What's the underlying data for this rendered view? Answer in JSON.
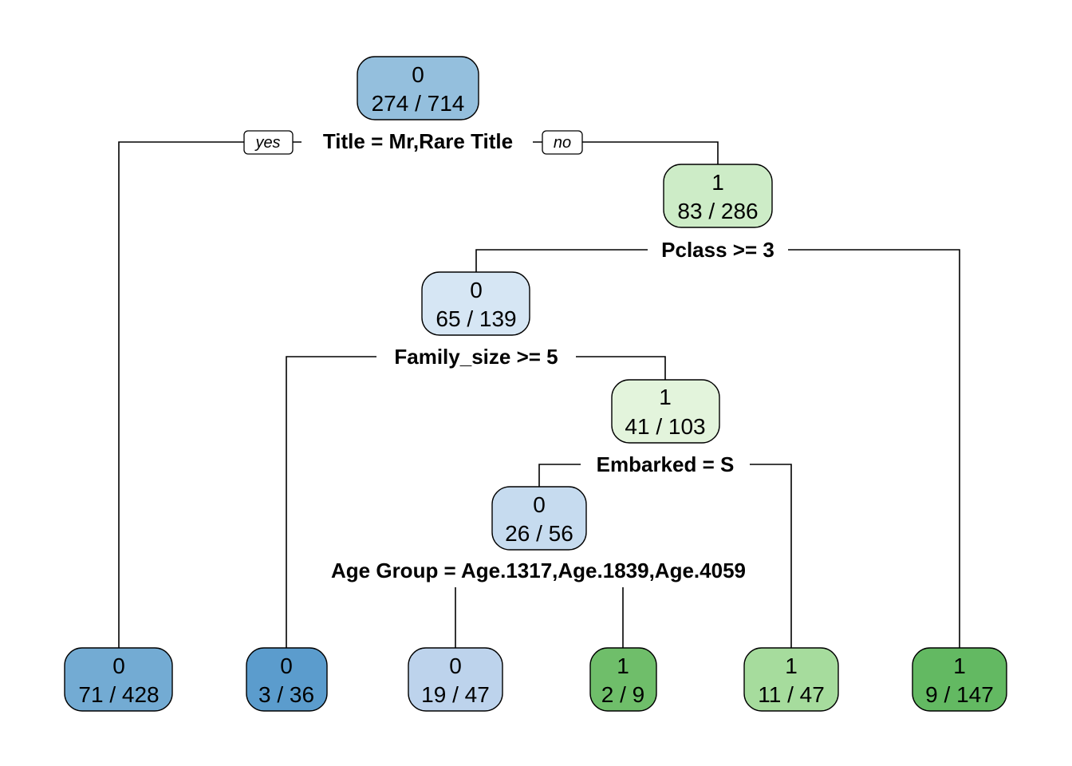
{
  "tree": {
    "branch_tags": {
      "yes": "yes",
      "no": "no"
    },
    "nodes": {
      "root": {
        "class": "0",
        "counts": "274 / 714",
        "fill": "#94bfdd"
      },
      "n_r": {
        "class": "1",
        "counts": "83 / 286",
        "fill": "#cdecc7"
      },
      "n_rl": {
        "class": "0",
        "counts": "65 / 139",
        "fill": "#d6e6f4"
      },
      "n_rlr": {
        "class": "1",
        "counts": "41 / 103",
        "fill": "#e3f4dc"
      },
      "n_rlrl": {
        "class": "0",
        "counts": "26 / 56",
        "fill": "#c6dbef"
      },
      "leaf1": {
        "class": "0",
        "counts": "71 / 428",
        "fill": "#73abd3"
      },
      "leaf2": {
        "class": "0",
        "counts": "3 / 36",
        "fill": "#5b9ccd"
      },
      "leaf3": {
        "class": "0",
        "counts": "19 / 47",
        "fill": "#bdd3ec"
      },
      "leaf4": {
        "class": "1",
        "counts": "2 / 9",
        "fill": "#6fbe6a"
      },
      "leaf5": {
        "class": "1",
        "counts": "11 / 47",
        "fill": "#a6dc9d"
      },
      "leaf6": {
        "class": "1",
        "counts": "9 / 147",
        "fill": "#63b962"
      }
    },
    "splits": {
      "root": "Title = Mr,Rare Title",
      "n_r": "Pclass >= 3",
      "n_rl": "Family_size >= 5",
      "n_rlr": "Embarked = S",
      "n_rlrl": "Age Group = Age.1317,Age.1839,Age.4059"
    }
  }
}
